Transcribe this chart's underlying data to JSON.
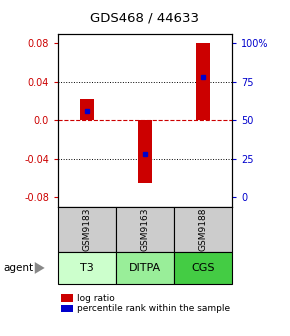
{
  "title": "GDS468 / 44633",
  "samples": [
    "GSM9183",
    "GSM9163",
    "GSM9188"
  ],
  "agents": [
    "T3",
    "DITPA",
    "CGS"
  ],
  "log_ratios": [
    0.022,
    -0.065,
    0.08
  ],
  "percentile_ranks": [
    56,
    28,
    78
  ],
  "ylim": [
    -0.09,
    0.09
  ],
  "y_ticks_left": [
    -0.08,
    -0.04,
    0.0,
    0.04,
    0.08
  ],
  "y_ticks_right_vals": [
    0,
    25,
    50,
    75,
    100
  ],
  "bar_color": "#cc0000",
  "dot_color": "#0000cc",
  "zero_line_color": "#cc0000",
  "agent_colors": [
    "#ccffcc",
    "#99ee99",
    "#44cc44"
  ],
  "sample_bg_color": "#cccccc",
  "bar_width": 0.25,
  "legend_bar_label": "log ratio",
  "legend_dot_label": "percentile rank within the sample",
  "left_tick_color": "#cc0000",
  "right_tick_color": "#0000cc"
}
